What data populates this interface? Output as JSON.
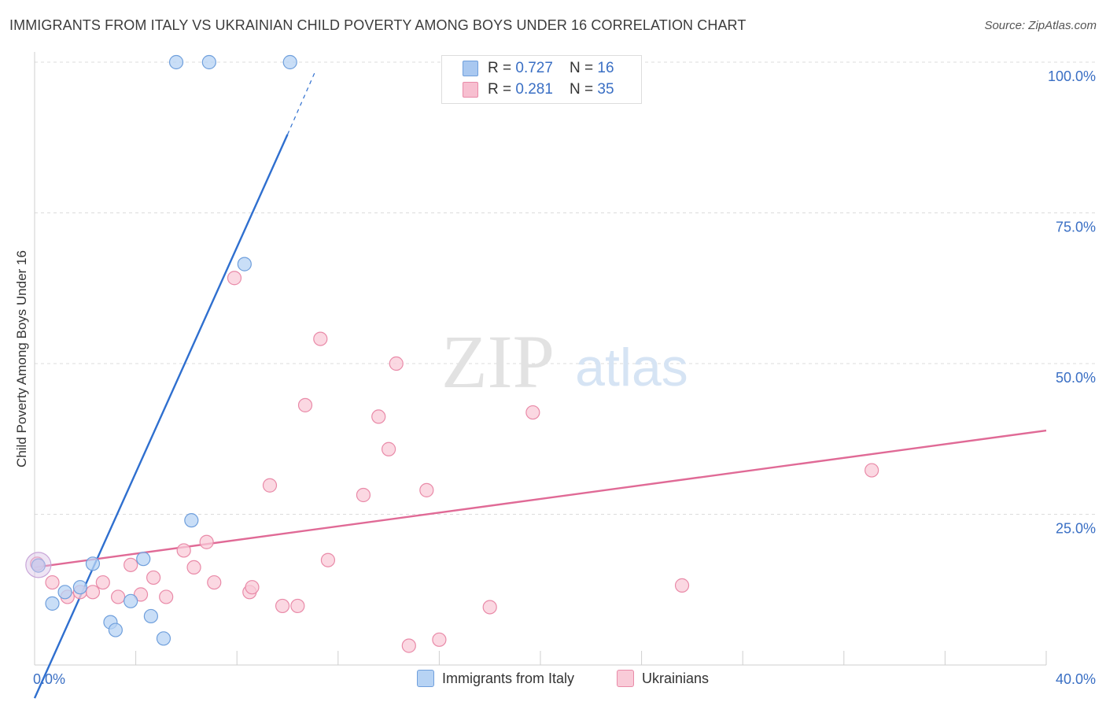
{
  "title": "IMMIGRANTS FROM ITALY VS UKRAINIAN CHILD POVERTY AMONG BOYS UNDER 16 CORRELATION CHART",
  "source": "Source: ZipAtlas.com",
  "watermark": {
    "zip": "ZIP",
    "atlas": "atlas"
  },
  "legend_top": [
    {
      "r_label": "R = ",
      "r_value": "0.727",
      "n_label": "N = ",
      "n_value": "16",
      "color": "#a9c8f0",
      "border": "#6f9fdc"
    },
    {
      "r_label": "R = ",
      "r_value": "0.281",
      "n_label": "N = ",
      "n_value": "35",
      "color": "#f7bfd0",
      "border": "#e98aa8"
    }
  ],
  "legend_bottom": [
    {
      "label": "Immigrants from Italy",
      "color": "#b7d3f4",
      "border": "#6f9fdc"
    },
    {
      "label": "Ukrainians",
      "color": "#f9cbd8",
      "border": "#e98aa8"
    }
  ],
  "chart_data": {
    "type": "scatter",
    "title": "IMMIGRANTS FROM ITALY VS UKRAINIAN CHILD POVERTY AMONG BOYS UNDER 16 CORRELATION CHART",
    "xlabel": "",
    "ylabel": "Child Poverty Among Boys Under 16",
    "xlim": [
      0,
      40
    ],
    "ylim": [
      0,
      100
    ],
    "x_tick_labels": [
      "0.0%",
      "40.0%"
    ],
    "y_tick_labels": [
      "25.0%",
      "50.0%",
      "75.0%",
      "100.0%"
    ],
    "y_ticks": [
      25,
      50,
      75,
      100
    ],
    "grid": true,
    "legend_position": "top-center",
    "series": [
      {
        "name": "Immigrants from Italy",
        "color": "#6f9fdc",
        "fill": "#b7d3f4",
        "points": [
          [
            0.15,
            16.5
          ],
          [
            0.7,
            10.2
          ],
          [
            1.2,
            12.1
          ],
          [
            1.8,
            12.9
          ],
          [
            2.3,
            16.8
          ],
          [
            3.0,
            7.1
          ],
          [
            3.2,
            5.8
          ],
          [
            3.8,
            10.6
          ],
          [
            4.3,
            17.6
          ],
          [
            4.6,
            8.1
          ],
          [
            5.1,
            4.4
          ],
          [
            5.6,
            100.0
          ],
          [
            6.9,
            100.0
          ],
          [
            6.2,
            24.0
          ],
          [
            8.3,
            66.5
          ],
          [
            10.1,
            100.0
          ]
        ],
        "trend": {
          "x": [
            0.0,
            10.0
          ],
          "y": [
            -5.5,
            88.0
          ],
          "dashed_to": [
            11.1,
            98.5
          ],
          "color": "#2f6fcf"
        }
      },
      {
        "name": "Ukrainians",
        "color": "#e98aa8",
        "fill": "#f9cbd8",
        "points": [
          [
            0.1,
            16.8
          ],
          [
            0.7,
            13.7
          ],
          [
            1.3,
            11.3
          ],
          [
            1.8,
            12.1
          ],
          [
            2.3,
            12.1
          ],
          [
            2.7,
            13.7
          ],
          [
            3.3,
            11.3
          ],
          [
            3.8,
            16.6
          ],
          [
            4.2,
            11.7
          ],
          [
            4.7,
            14.5
          ],
          [
            5.2,
            11.3
          ],
          [
            5.9,
            19.0
          ],
          [
            6.3,
            16.2
          ],
          [
            6.8,
            20.4
          ],
          [
            7.1,
            13.7
          ],
          [
            7.9,
            64.2
          ],
          [
            8.5,
            12.1
          ],
          [
            8.6,
            12.9
          ],
          [
            9.3,
            29.8
          ],
          [
            9.8,
            9.8
          ],
          [
            10.4,
            9.8
          ],
          [
            10.7,
            43.1
          ],
          [
            11.3,
            54.1
          ],
          [
            11.6,
            17.4
          ],
          [
            13.0,
            28.2
          ],
          [
            13.6,
            41.2
          ],
          [
            14.0,
            35.8
          ],
          [
            14.3,
            50.0
          ],
          [
            14.8,
            3.2
          ],
          [
            15.5,
            29.0
          ],
          [
            16.0,
            4.2
          ],
          [
            18.0,
            9.6
          ],
          [
            19.7,
            41.9
          ],
          [
            25.6,
            13.2
          ],
          [
            33.1,
            32.3
          ]
        ],
        "trend": {
          "x": [
            0.0,
            40.0
          ],
          "y": [
            16.2,
            38.9
          ],
          "color": "#e06a96"
        }
      }
    ]
  }
}
